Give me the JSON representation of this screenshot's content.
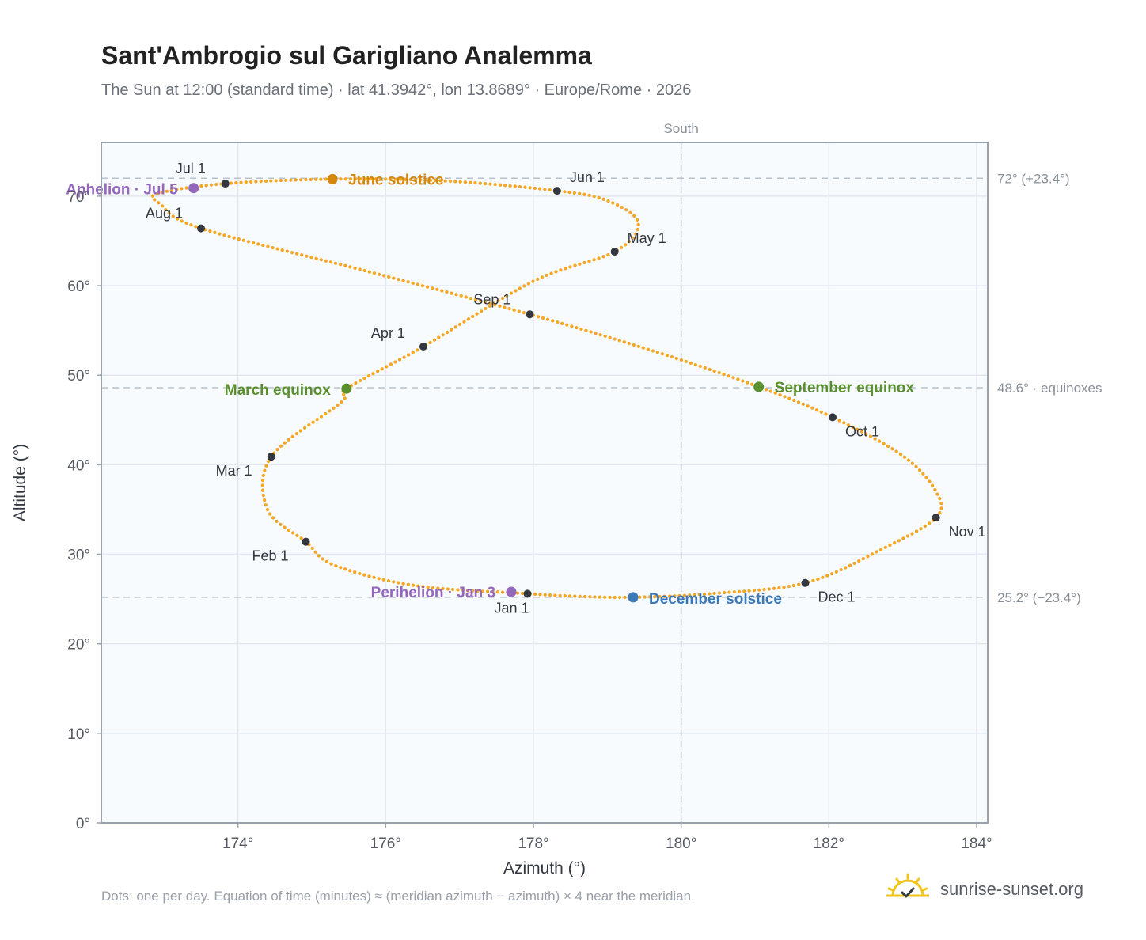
{
  "header": {
    "title": "Sant'Ambrogio sul Garigliano Analemma",
    "subtitle": "The Sun at 12:00 (standard time) · lat 41.3942°, lon 13.8689° · Europe/Rome · 2026"
  },
  "footer": {
    "note": "Dots: one per day. Equation of time (minutes) ≈ (meridian azimuth − azimuth) × 4 near the meridian.",
    "brand": "sunrise-sunset.org",
    "brand_icon": "sun-check-icon"
  },
  "colors": {
    "curve": "#f5a623",
    "month_marker": "#333840",
    "june_solstice": "#d4880f",
    "december_solstice": "#3a78b8",
    "equinox": "#5a8f2e",
    "aphelion_perihelion": "#9467bd",
    "grid": "#e2e8ef",
    "reference_line": "#b8c2cc",
    "plot_background": "#f8fbfe"
  },
  "chart_data": {
    "type": "scatter",
    "xlabel": "Azimuth (°)",
    "ylabel": "Altitude (°)",
    "xlim": [
      172.15,
      184.15
    ],
    "ylim": [
      0,
      76
    ],
    "x_ticks": [
      174,
      176,
      178,
      180,
      182,
      184
    ],
    "x_tick_labels": [
      "174°",
      "176°",
      "178°",
      "180°",
      "182°",
      "184°"
    ],
    "y_ticks": [
      0,
      10,
      20,
      30,
      40,
      50,
      60,
      70
    ],
    "y_tick_labels": [
      "0°",
      "10°",
      "20°",
      "30°",
      "40°",
      "50°",
      "60°",
      "70°"
    ],
    "grid": true,
    "meridian": {
      "azimuth": 180,
      "label": "South"
    },
    "reference_lines": [
      {
        "altitude": 72.0,
        "label": "72° (+23.4°)"
      },
      {
        "altitude": 48.6,
        "label": "48.6° · equinoxes"
      },
      {
        "altitude": 25.2,
        "label": "25.2° (−23.4°)"
      }
    ],
    "series_points": [
      [
        177.92,
        25.6
      ],
      [
        176.4,
        26.5
      ],
      [
        175.3,
        28.8
      ],
      [
        174.92,
        31.4
      ],
      [
        174.4,
        35.0
      ],
      [
        174.45,
        40.9
      ],
      [
        175.4,
        47.0
      ],
      [
        175.47,
        48.5
      ],
      [
        176.51,
        53.2
      ],
      [
        178.0,
        60.5
      ],
      [
        179.1,
        63.8
      ],
      [
        179.42,
        67.0
      ],
      [
        179.0,
        69.5
      ],
      [
        178.32,
        70.6
      ],
      [
        176.8,
        71.7
      ],
      [
        175.28,
        71.9
      ],
      [
        173.83,
        71.4
      ],
      [
        172.92,
        70.3
      ],
      [
        172.95,
        69.1
      ],
      [
        173.5,
        66.4
      ],
      [
        175.8,
        61.5
      ],
      [
        177.95,
        56.8
      ],
      [
        179.7,
        52.5
      ],
      [
        181.05,
        48.7
      ],
      [
        182.05,
        45.3
      ],
      [
        183.0,
        41.0
      ],
      [
        183.45,
        37.0
      ],
      [
        183.45,
        34.1
      ],
      [
        182.7,
        30.5
      ],
      [
        181.68,
        26.8
      ],
      [
        180.4,
        25.6
      ],
      [
        179.35,
        25.2
      ],
      [
        178.6,
        25.3
      ]
    ],
    "month_markers": [
      {
        "label": "Jan 1",
        "az": 177.92,
        "alt": 25.6
      },
      {
        "label": "Feb 1",
        "az": 174.92,
        "alt": 31.4
      },
      {
        "label": "Mar 1",
        "az": 174.45,
        "alt": 40.9
      },
      {
        "label": "Apr 1",
        "az": 176.51,
        "alt": 53.2
      },
      {
        "label": "May 1",
        "az": 179.1,
        "alt": 63.8
      },
      {
        "label": "Jun 1",
        "az": 178.32,
        "alt": 70.6
      },
      {
        "label": "Jul 1",
        "az": 173.83,
        "alt": 71.4
      },
      {
        "label": "Aug 1",
        "az": 173.5,
        "alt": 66.4
      },
      {
        "label": "Sep 1",
        "az": 177.95,
        "alt": 56.8
      },
      {
        "label": "Oct 1",
        "az": 182.05,
        "alt": 45.3
      },
      {
        "label": "Nov 1",
        "az": 183.45,
        "alt": 34.1
      },
      {
        "label": "Dec 1",
        "az": 181.68,
        "alt": 26.8
      }
    ],
    "special_points": [
      {
        "label": "June solstice",
        "az": 175.28,
        "alt": 71.9,
        "color": "june_solstice"
      },
      {
        "label": "December solstice",
        "az": 179.35,
        "alt": 25.2,
        "color": "december_solstice"
      },
      {
        "label": "March equinox",
        "az": 175.47,
        "alt": 48.5,
        "color": "equinox"
      },
      {
        "label": "September equinox",
        "az": 181.05,
        "alt": 48.7,
        "color": "equinox"
      },
      {
        "label": "Aphelion · Jul 5",
        "az": 173.4,
        "alt": 70.9,
        "color": "aphelion_perihelion"
      },
      {
        "label": "Perihelion · Jan 3",
        "az": 177.7,
        "alt": 25.8,
        "color": "aphelion_perihelion"
      }
    ]
  }
}
